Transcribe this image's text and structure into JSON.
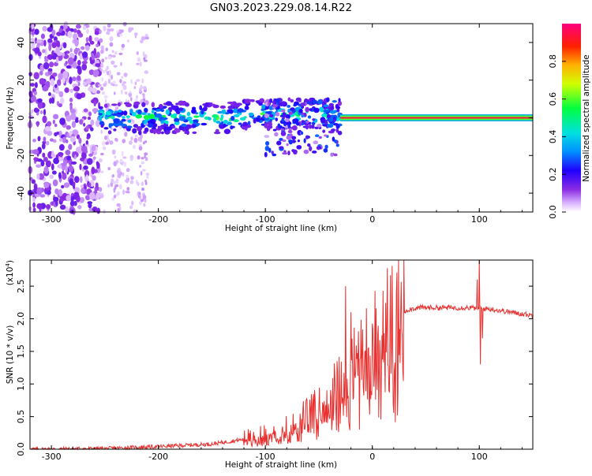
{
  "title": "GN03.2023.229.08.14.R22",
  "colors": {
    "snr_line": "#e8302e",
    "background": "#ffffff",
    "axes": "#000000"
  },
  "chart_data": [
    {
      "type": "heatmap",
      "xlabel": "Height of straight line (km)",
      "ylabel": "Frequency (Hz)",
      "xlim": [
        -320,
        150
      ],
      "ylim": [
        -50,
        50
      ],
      "x_ticks": [
        -300,
        -200,
        -100,
        0,
        100
      ],
      "y_ticks": [
        -40,
        -20,
        0,
        20,
        40
      ],
      "colorbar": {
        "label": "Normalized spectral amplitude",
        "range": [
          0,
          1
        ],
        "ticks": [
          "0.0",
          "0.2",
          "0.4",
          "0.6",
          "0.8"
        ],
        "tick_values": [
          0,
          0.2,
          0.4,
          0.6,
          0.8
        ]
      },
      "features": [
        {
          "region": "noise",
          "x_range": [
            -320,
            -255
          ],
          "freq_range": [
            -50,
            50
          ],
          "amplitude": 0.1
        },
        {
          "region": "weak noise",
          "x_range": [
            -255,
            -210
          ],
          "freq_range": [
            -50,
            50
          ],
          "amplitude": 0.05
        },
        {
          "region": "broadband signal",
          "x_range": [
            -255,
            -30
          ],
          "freq_range": [
            -8,
            8
          ],
          "amplitude": 0.35
        },
        {
          "region": "spread signal",
          "x_range": [
            -100,
            -30
          ],
          "freq_range": [
            -20,
            10
          ],
          "amplitude": 0.25
        },
        {
          "region": "tone",
          "x_range": [
            -30,
            150
          ],
          "freq_range": [
            -1,
            1
          ],
          "amplitude": 0.95
        }
      ]
    },
    {
      "type": "line",
      "xlabel": "Height of straight line (km)",
      "ylabel": "SNR (10 * v/v)",
      "y_scale_label": "(x10",
      "y_scale_exponent": "4",
      "y_scale_suffix": ")",
      "xlim": [
        -320,
        150
      ],
      "ylim": [
        0,
        2.9
      ],
      "x_ticks": [
        -300,
        -200,
        -100,
        0,
        100
      ],
      "y_ticks": [
        "0.0",
        "0.5",
        "1.0",
        "1.5",
        "2.0",
        "2.5"
      ],
      "y_tick_values": [
        0,
        0.5,
        1.0,
        1.5,
        2.0,
        2.5
      ],
      "series": [
        {
          "name": "SNR",
          "points": [
            [
              -320,
              0.0
            ],
            [
              -250,
              0.01
            ],
            [
              -200,
              0.04
            ],
            [
              -150,
              0.08
            ],
            [
              -120,
              0.15
            ],
            [
              -100,
              0.22
            ],
            [
              -80,
              0.35
            ],
            [
              -60,
              0.5
            ],
            [
              -45,
              0.7
            ],
            [
              -35,
              0.9
            ],
            [
              -25,
              1.05
            ],
            [
              -15,
              1.3
            ],
            [
              -5,
              1.55
            ],
            [
              5,
              1.75
            ],
            [
              15,
              1.95
            ],
            [
              25,
              2.08
            ],
            [
              35,
              2.15
            ],
            [
              45,
              2.17
            ],
            [
              70,
              2.17
            ],
            [
              90,
              2.17
            ],
            [
              110,
              2.15
            ],
            [
              130,
              2.1
            ],
            [
              150,
              2.05
            ]
          ],
          "spikes": [
            {
              "x": -25,
              "value": 2.5
            },
            {
              "x": -20,
              "value": 2.1
            },
            {
              "x": 100,
              "value": 2.95
            },
            {
              "x": 101,
              "value": 1.3
            },
            {
              "x": 98,
              "value": 2.6
            },
            {
              "x": 103,
              "value": 1.7
            }
          ]
        }
      ]
    }
  ]
}
